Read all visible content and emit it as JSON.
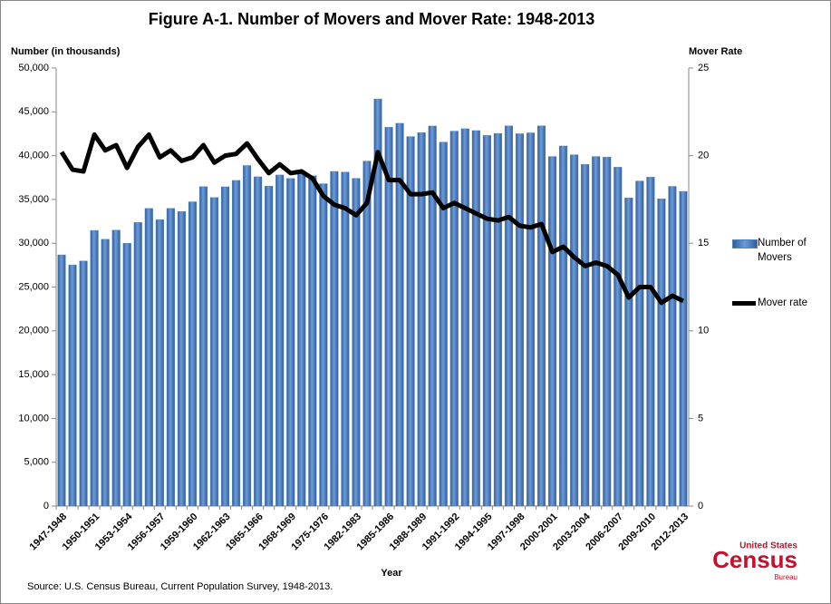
{
  "chart_data": {
    "type": "bar",
    "title": "Figure A-1. Number of Movers and Mover Rate: 1948-2013",
    "y_label": "Number (in thousands)",
    "y2_label": "Mover Rate",
    "x_label": "Year",
    "source": "Source: U.S. Census Bureau, Current Population Survey, 1948-2013.",
    "logo": [
      "United States",
      "Census",
      "Bureau"
    ],
    "categories": [
      "1947-1948",
      null,
      null,
      "1950-1951",
      null,
      null,
      "1953-1954",
      null,
      null,
      "1956-1957",
      null,
      null,
      "1959-1960",
      null,
      null,
      "1962-1963",
      null,
      null,
      "1965-1966",
      null,
      null,
      "1968-1969",
      null,
      null,
      "1975-1976",
      null,
      null,
      "1982-1983",
      null,
      null,
      "1985-1986",
      null,
      null,
      "1988-1989",
      null,
      null,
      "1991-1992",
      null,
      null,
      "1994-1995",
      null,
      null,
      "1997-1998",
      null,
      null,
      "2000-2001",
      null,
      null,
      "2003-2004",
      null,
      null,
      "2006-2007",
      null,
      null,
      "2009-2010",
      null,
      null,
      "2012-2013"
    ],
    "series": [
      {
        "name": "Number of Movers",
        "color": "#4f81bd",
        "type": "bar",
        "values": [
          28672,
          27527,
          27971,
          31464,
          30453,
          31500,
          29998,
          32371,
          33972,
          32695,
          33985,
          33617,
          34731,
          36460,
          35219,
          36443,
          37172,
          38871,
          37586,
          36521,
          37793,
          37395,
          38097,
          37705,
          36793,
          38200,
          38127,
          37408,
          39379,
          46470,
          43237,
          43693,
          42174,
          42620,
          43381,
          41539,
          42800,
          43070,
          42860,
          42300,
          42537,
          43400,
          42500,
          42600,
          43400,
          39900,
          41100,
          40100,
          38995,
          39900,
          39837,
          38681,
          35167,
          37105,
          37540,
          35075,
          36488,
          35918
        ]
      },
      {
        "name": "Mover rate",
        "color": "#000000",
        "type": "line",
        "axis": "y2",
        "values": [
          20.2,
          19.2,
          19.1,
          21.2,
          20.3,
          20.6,
          19.3,
          20.5,
          21.2,
          19.9,
          20.3,
          19.7,
          19.9,
          20.6,
          19.6,
          20.0,
          20.1,
          20.7,
          19.8,
          19.0,
          19.5,
          19.0,
          19.1,
          18.7,
          17.7,
          17.2,
          17.0,
          16.6,
          17.3,
          20.2,
          18.6,
          18.6,
          17.8,
          17.8,
          17.9,
          17.0,
          17.3,
          17.0,
          16.7,
          16.4,
          16.3,
          16.5,
          16.0,
          15.9,
          16.1,
          14.5,
          14.8,
          14.2,
          13.7,
          13.9,
          13.7,
          13.2,
          11.9,
          12.5,
          12.5,
          11.6,
          12.0,
          11.7
        ]
      }
    ],
    "ylim": [
      0,
      50000
    ],
    "yticks": [
      0,
      {
        "value": 5000,
        "label": "5,000"
      },
      {
        "value": 10000,
        "label": "10,000"
      },
      {
        "value": 15000,
        "label": "15,000"
      },
      {
        "value": 20000,
        "label": "20,000"
      },
      {
        "value": 25000,
        "label": "25,000"
      },
      {
        "value": 30000,
        "label": "30,000"
      },
      {
        "value": 35000,
        "label": "35,000"
      },
      {
        "value": 40000,
        "label": "40,000"
      },
      {
        "value": 45000,
        "label": "45,000"
      },
      {
        "value": 50000,
        "label": "50,000"
      }
    ],
    "y2lim": [
      0,
      25
    ],
    "y2ticks": [
      0,
      5,
      10,
      15,
      20,
      25
    ],
    "grid": false,
    "legend": "right"
  }
}
